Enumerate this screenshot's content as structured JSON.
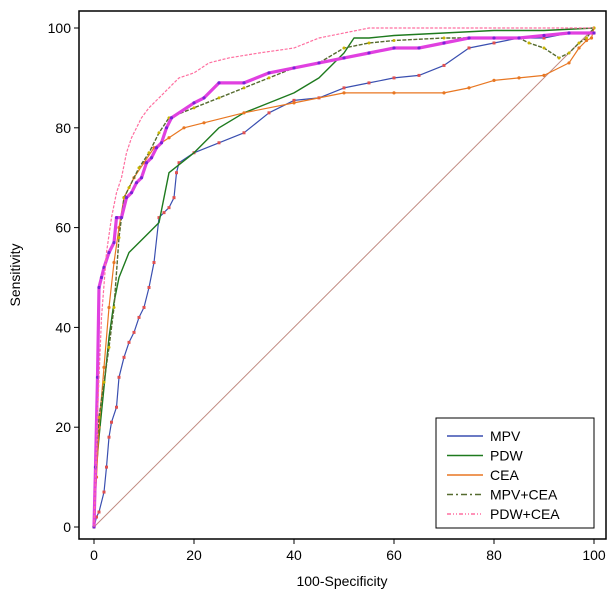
{
  "chart_data": {
    "type": "line",
    "title": "",
    "xlabel": "100-Specificity",
    "ylabel": "Sensitivity",
    "xlim": [
      0,
      100
    ],
    "ylim": [
      0,
      100
    ],
    "xticks": [
      0,
      20,
      40,
      60,
      80,
      100
    ],
    "yticks": [
      0,
      20,
      40,
      60,
      80,
      100
    ],
    "grid": false,
    "legend_position": "bottom-right",
    "reference_line": {
      "x": [
        0,
        100
      ],
      "y": [
        0,
        100
      ],
      "color": "#c08a80"
    },
    "series": [
      {
        "name": "MPV",
        "color": "#3a4fb0",
        "points": [
          [
            0,
            0
          ],
          [
            0.5,
            2
          ],
          [
            1,
            3
          ],
          [
            2,
            7
          ],
          [
            2.5,
            12
          ],
          [
            3,
            18
          ],
          [
            3.5,
            21
          ],
          [
            4.5,
            24
          ],
          [
            5,
            30
          ],
          [
            6,
            34
          ],
          [
            7,
            37
          ],
          [
            8,
            39
          ],
          [
            9,
            42
          ],
          [
            10,
            44
          ],
          [
            11,
            48
          ],
          [
            12,
            53
          ],
          [
            13,
            62
          ],
          [
            14,
            63
          ],
          [
            15,
            64
          ],
          [
            16,
            66
          ],
          [
            16.5,
            71
          ],
          [
            17,
            73
          ],
          [
            20,
            75
          ],
          [
            25,
            77
          ],
          [
            30,
            79
          ],
          [
            35,
            83
          ],
          [
            40,
            85.5
          ],
          [
            45,
            86
          ],
          [
            50,
            88
          ],
          [
            55,
            89
          ],
          [
            60,
            90
          ],
          [
            65,
            90.5
          ],
          [
            70,
            92.5
          ],
          [
            75,
            96
          ],
          [
            80,
            97
          ],
          [
            85,
            98
          ],
          [
            90,
            98
          ],
          [
            95,
            99
          ],
          [
            100,
            99
          ]
        ]
      },
      {
        "name": "PDW",
        "color": "#1e7a1e",
        "points": [
          [
            0,
            0
          ],
          [
            0.5,
            12
          ],
          [
            1,
            18
          ],
          [
            2,
            28
          ],
          [
            3,
            38
          ],
          [
            4,
            45
          ],
          [
            5,
            50
          ],
          [
            7,
            55
          ],
          [
            10,
            58
          ],
          [
            13,
            61
          ],
          [
            15,
            71
          ],
          [
            20,
            75
          ],
          [
            25,
            80
          ],
          [
            30,
            83
          ],
          [
            35,
            85
          ],
          [
            40,
            87
          ],
          [
            45,
            90
          ],
          [
            50,
            95
          ],
          [
            52,
            98
          ],
          [
            55,
            98
          ],
          [
            60,
            98.5
          ],
          [
            70,
            99
          ],
          [
            80,
            99.5
          ],
          [
            90,
            99.5
          ],
          [
            100,
            100
          ]
        ]
      },
      {
        "name": "CEA",
        "color": "#e87722",
        "points": [
          [
            0,
            0
          ],
          [
            0.5,
            10
          ],
          [
            1,
            20
          ],
          [
            2,
            32
          ],
          [
            3,
            44
          ],
          [
            4,
            53
          ],
          [
            5,
            60
          ],
          [
            6,
            66
          ],
          [
            8,
            70
          ],
          [
            10,
            73
          ],
          [
            12,
            76
          ],
          [
            15,
            78
          ],
          [
            18,
            80
          ],
          [
            22,
            81
          ],
          [
            30,
            83
          ],
          [
            40,
            85
          ],
          [
            50,
            87
          ],
          [
            60,
            87
          ],
          [
            70,
            87
          ],
          [
            75,
            88
          ],
          [
            80,
            89.5
          ],
          [
            85,
            90
          ],
          [
            90,
            90.5
          ],
          [
            95,
            93
          ],
          [
            97,
            96
          ],
          [
            98.5,
            97.5
          ],
          [
            99.5,
            98
          ],
          [
            100,
            100
          ]
        ]
      },
      {
        "name": "MPV+CEA",
        "color": "#556b2f",
        "points": [
          [
            0,
            0
          ],
          [
            0.5,
            15
          ],
          [
            1,
            22
          ],
          [
            2,
            29
          ],
          [
            3,
            36
          ],
          [
            4,
            44
          ],
          [
            5,
            58
          ],
          [
            6,
            66
          ],
          [
            7,
            68
          ],
          [
            9,
            72
          ],
          [
            11,
            75
          ],
          [
            13,
            79
          ],
          [
            15,
            82
          ],
          [
            20,
            84
          ],
          [
            25,
            86
          ],
          [
            30,
            88
          ],
          [
            35,
            90
          ],
          [
            40,
            92
          ],
          [
            45,
            93
          ],
          [
            50,
            96
          ],
          [
            55,
            97
          ],
          [
            60,
            97.5
          ],
          [
            70,
            98
          ],
          [
            80,
            98
          ],
          [
            85,
            98
          ],
          [
            87,
            97
          ],
          [
            90,
            96
          ],
          [
            93,
            94
          ],
          [
            95,
            95
          ],
          [
            97,
            97
          ],
          [
            98.5,
            98
          ],
          [
            100,
            100
          ]
        ]
      },
      {
        "name": "PDW+CEA",
        "color": "#e040e0",
        "points": [
          [
            0,
            0
          ],
          [
            0.3,
            12
          ],
          [
            0.7,
            30
          ],
          [
            1,
            48
          ],
          [
            1.5,
            50
          ],
          [
            2,
            52
          ],
          [
            3,
            55
          ],
          [
            4,
            57
          ],
          [
            4.5,
            62
          ],
          [
            5.5,
            62
          ],
          [
            6.5,
            66
          ],
          [
            7.5,
            67
          ],
          [
            8.5,
            69
          ],
          [
            9.5,
            70
          ],
          [
            10.5,
            73
          ],
          [
            11.5,
            74
          ],
          [
            12.5,
            76
          ],
          [
            13.5,
            77
          ],
          [
            14.5,
            80
          ],
          [
            15.5,
            82
          ],
          [
            20,
            85
          ],
          [
            22,
            86
          ],
          [
            25,
            89
          ],
          [
            30,
            89
          ],
          [
            35,
            91
          ],
          [
            40,
            92
          ],
          [
            45,
            93
          ],
          [
            50,
            94
          ],
          [
            55,
            95
          ],
          [
            60,
            96
          ],
          [
            65,
            96
          ],
          [
            70,
            97
          ],
          [
            75,
            98
          ],
          [
            80,
            98
          ],
          [
            85,
            98
          ],
          [
            90,
            98.5
          ],
          [
            95,
            99
          ],
          [
            100,
            99
          ]
        ]
      },
      {
        "name": "PDW+CEA",
        "color": "#ff6fa0",
        "points": [
          [
            0,
            0
          ],
          [
            0.3,
            10
          ],
          [
            0.8,
            25
          ],
          [
            1.5,
            42
          ],
          [
            2.5,
            55
          ],
          [
            3.5,
            62
          ],
          [
            4.5,
            67
          ],
          [
            5.5,
            70
          ],
          [
            6.5,
            75
          ],
          [
            7.5,
            78
          ],
          [
            8.5,
            80
          ],
          [
            9.5,
            82
          ],
          [
            11,
            84
          ],
          [
            13,
            86
          ],
          [
            15,
            88
          ],
          [
            17,
            90
          ],
          [
            20,
            91
          ],
          [
            23,
            93
          ],
          [
            27,
            94
          ],
          [
            33,
            95
          ],
          [
            40,
            96
          ],
          [
            45,
            98
          ],
          [
            50,
            99
          ],
          [
            55,
            100
          ],
          [
            70,
            100
          ],
          [
            80,
            100
          ],
          [
            90,
            100
          ],
          [
            100,
            100
          ]
        ]
      }
    ],
    "legend": [
      {
        "label": "MPV",
        "color": "#3a4fb0",
        "dash": ""
      },
      {
        "label": "PDW",
        "color": "#1e7a1e",
        "dash": ""
      },
      {
        "label": "CEA",
        "color": "#e87722",
        "dash": ""
      },
      {
        "label": "MPV+CEA",
        "color": "#556b2f",
        "dash": "6,3,2,3"
      },
      {
        "label": "PDW+CEA",
        "color": "#ff6fa0",
        "dash": "4,2,1,2,1,2"
      }
    ]
  }
}
